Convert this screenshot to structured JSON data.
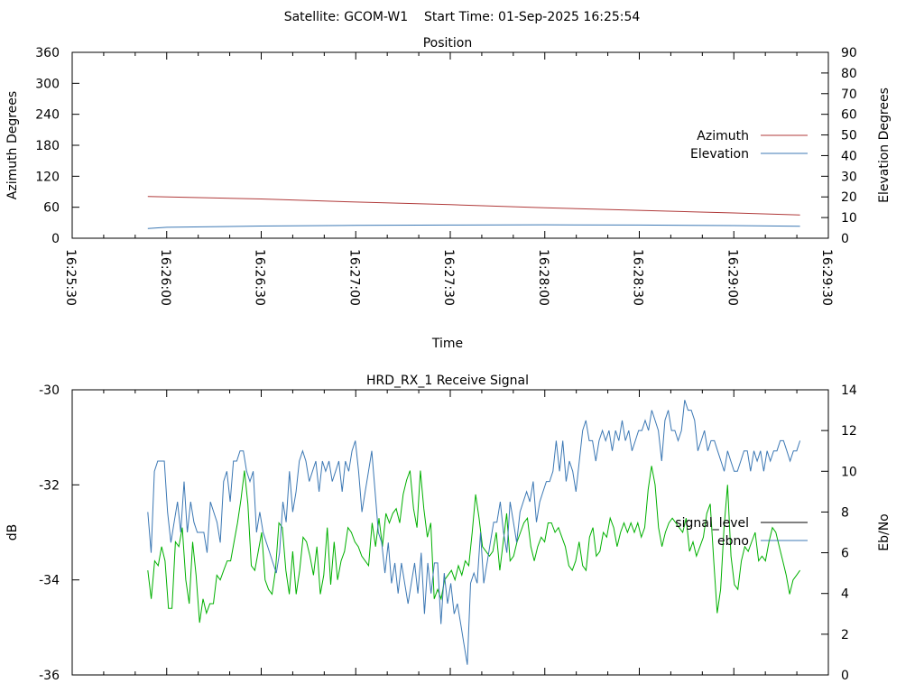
{
  "page_title": "Satellite: GCOM-W1    Start Time: 01-Sep-2025 16:25:54",
  "chart_data": [
    {
      "type": "line",
      "title": "Position",
      "xlabel": "Time",
      "ylabel": "Azimuth Degrees",
      "y2label": "Elevation Degrees",
      "x_ticks": [
        "16:25:30",
        "16:26:00",
        "16:26:30",
        "16:27:00",
        "16:27:30",
        "16:28:00",
        "16:28:30",
        "16:29:00",
        "16:29:30"
      ],
      "xlim": [
        "16:25:30",
        "16:29:30"
      ],
      "ylim": [
        0,
        360
      ],
      "y2lim": [
        0,
        90
      ],
      "y_ticks": [
        0,
        60,
        120,
        180,
        240,
        300,
        360
      ],
      "y2_ticks": [
        0,
        10,
        20,
        30,
        40,
        50,
        60,
        70,
        80,
        90
      ],
      "legend_position": "right",
      "series": [
        {
          "name": "Azimuth",
          "axis": "left",
          "color": "#b03a3a",
          "x": [
            "16:25:54",
            "16:26:30",
            "16:27:00",
            "16:27:30",
            "16:28:00",
            "16:28:30",
            "16:29:00",
            "16:29:21"
          ],
          "values": [
            81,
            76,
            70,
            65,
            59,
            54,
            49,
            45
          ]
        },
        {
          "name": "Elevation",
          "axis": "right",
          "color": "#3c78b4",
          "x": [
            "16:25:54",
            "16:26:00",
            "16:26:30",
            "16:27:00",
            "16:27:30",
            "16:28:00",
            "16:28:30",
            "16:29:00",
            "16:29:21"
          ],
          "values": [
            4.7,
            5.3,
            5.9,
            6.2,
            6.4,
            6.5,
            6.4,
            6.1,
            5.8
          ]
        }
      ]
    },
    {
      "type": "line",
      "title": "HRD_RX_1 Receive Signal",
      "ylabel": "dB",
      "y2label": "Eb/No",
      "ylim": [
        -36,
        -30
      ],
      "y2lim": [
        0,
        14
      ],
      "y_ticks": [
        -36,
        -34,
        -32,
        -30
      ],
      "y2_ticks": [
        0,
        2,
        4,
        6,
        8,
        10,
        12,
        14
      ],
      "legend_position": "right",
      "series": [
        {
          "name": "signal_level",
          "axis": "left",
          "color": "#00b000",
          "legend_color": "#000000",
          "values": [
            -33.8,
            -34.4,
            -33.6,
            -33.7,
            -33.3,
            -33.6,
            -34.6,
            -34.6,
            -33.2,
            -33.3,
            -32.9,
            -34.0,
            -34.5,
            -33.2,
            -33.9,
            -34.9,
            -34.4,
            -34.7,
            -34.5,
            -34.5,
            -33.9,
            -34.0,
            -33.8,
            -33.6,
            -33.6,
            -33.2,
            -32.8,
            -32.3,
            -31.7,
            -32.4,
            -33.7,
            -33.8,
            -33.4,
            -33.0,
            -34.0,
            -34.2,
            -34.3,
            -33.8,
            -32.8,
            -32.9,
            -33.8,
            -34.3,
            -33.4,
            -34.3,
            -33.8,
            -33.1,
            -33.2,
            -33.5,
            -33.9,
            -33.3,
            -34.3,
            -33.9,
            -32.9,
            -34.1,
            -33.2,
            -34.0,
            -33.6,
            -33.4,
            -32.9,
            -33.0,
            -33.2,
            -33.3,
            -33.5,
            -33.6,
            -33.7,
            -32.8,
            -33.3,
            -32.7,
            -33.3,
            -32.6,
            -32.8,
            -32.6,
            -32.5,
            -32.8,
            -32.2,
            -31.9,
            -31.7,
            -32.5,
            -32.9,
            -31.7,
            -32.5,
            -33.1,
            -32.8,
            -34.4,
            -34.2,
            -34.4,
            -34.0,
            -33.9,
            -33.8,
            -34.0,
            -33.7,
            -33.9,
            -33.6,
            -33.7,
            -33.0,
            -32.2,
            -32.7,
            -33.3,
            -33.4,
            -33.5,
            -33.4,
            -33.0,
            -33.8,
            -33.2,
            -32.6,
            -33.6,
            -33.5,
            -33.2,
            -33.0,
            -32.8,
            -32.7,
            -33.3,
            -33.6,
            -33.3,
            -33.1,
            -33.2,
            -32.8,
            -32.8,
            -33.0,
            -32.9,
            -33.1,
            -33.3,
            -33.7,
            -33.8,
            -33.6,
            -33.2,
            -33.7,
            -33.8,
            -33.1,
            -32.9,
            -33.5,
            -33.4,
            -33.0,
            -33.1,
            -32.7,
            -32.9,
            -33.3,
            -33.0,
            -32.8,
            -33.0,
            -32.8,
            -33.0,
            -32.8,
            -33.1,
            -32.9,
            -32.1,
            -31.6,
            -32.0,
            -32.9,
            -33.3,
            -33.0,
            -32.8,
            -32.7,
            -32.8,
            -32.9,
            -33.0,
            -32.7,
            -33.4,
            -33.2,
            -33.5,
            -33.3,
            -33.1,
            -32.6,
            -32.4,
            -33.6,
            -34.7,
            -34.2,
            -32.9,
            -32.0,
            -33.5,
            -34.1,
            -34.2,
            -33.6,
            -33.3,
            -33.4,
            -33.2,
            -33.0,
            -33.6,
            -33.5,
            -33.6,
            -33.2,
            -32.9,
            -33.0,
            -33.3,
            -33.6,
            -33.9,
            -34.3,
            -34.0,
            -33.9,
            -33.8
          ]
        },
        {
          "name": "ebno",
          "axis": "right",
          "color": "#3c78b4",
          "values": [
            8.0,
            6.0,
            10.0,
            10.5,
            10.5,
            10.5,
            8.0,
            6.5,
            7.5,
            8.5,
            7.0,
            9.5,
            7.0,
            8.5,
            7.5,
            7.0,
            7.0,
            7.0,
            6.0,
            8.5,
            8.0,
            7.5,
            6.5,
            9.5,
            10.0,
            8.5,
            10.5,
            10.5,
            11.0,
            11.0,
            10.0,
            9.5,
            10.0,
            7.0,
            8.0,
            7.0,
            6.5,
            6.0,
            5.5,
            5.0,
            6.0,
            8.5,
            7.5,
            10.0,
            8.0,
            9.0,
            10.5,
            11.0,
            10.5,
            9.5,
            10.0,
            10.5,
            9.0,
            10.5,
            10.0,
            10.5,
            9.5,
            10.0,
            10.5,
            9.0,
            10.5,
            10.0,
            11.0,
            11.5,
            10.0,
            8.0,
            9.0,
            10.0,
            11.0,
            9.0,
            7.0,
            6.5,
            5.0,
            6.5,
            4.5,
            5.5,
            4.0,
            5.5,
            4.5,
            3.5,
            4.5,
            5.5,
            4.0,
            6.0,
            3.0,
            5.5,
            4.0,
            5.5,
            5.5,
            2.5,
            5.0,
            3.5,
            4.5,
            3.0,
            3.5,
            2.5,
            1.5,
            0.5,
            4.5,
            5.0,
            4.5,
            7.0,
            4.5,
            5.5,
            6.5,
            7.5,
            7.5,
            8.5,
            7.0,
            6.0,
            8.5,
            7.5,
            6.5,
            8.0,
            8.5,
            9.0,
            8.5,
            9.5,
            7.5,
            8.5,
            9.0,
            9.5,
            9.5,
            10.0,
            11.5,
            10.0,
            11.5,
            9.5,
            10.5,
            10.0,
            9.0,
            10.5,
            12.0,
            12.5,
            11.5,
            11.5,
            10.5,
            11.5,
            12.0,
            11.5,
            12.0,
            11.0,
            12.0,
            11.5,
            12.5,
            11.5,
            12.0,
            11.0,
            11.5,
            12.0,
            12.0,
            12.5,
            12.0,
            13.0,
            12.5,
            12.0,
            10.5,
            12.5,
            13.0,
            12.0,
            12.0,
            11.5,
            12.0,
            13.5,
            13.0,
            13.0,
            12.5,
            11.0,
            11.5,
            12.0,
            11.0,
            11.5,
            11.5,
            11.0,
            10.5,
            10.0,
            11.0,
            10.5,
            10.0,
            10.0,
            10.5,
            11.0,
            11.0,
            10.0,
            11.0,
            10.5,
            11.0,
            10.0,
            11.0,
            10.5,
            11.0,
            11.0,
            11.5,
            11.5,
            11.0,
            10.5,
            11.0,
            11.0,
            11.5
          ]
        }
      ]
    }
  ]
}
